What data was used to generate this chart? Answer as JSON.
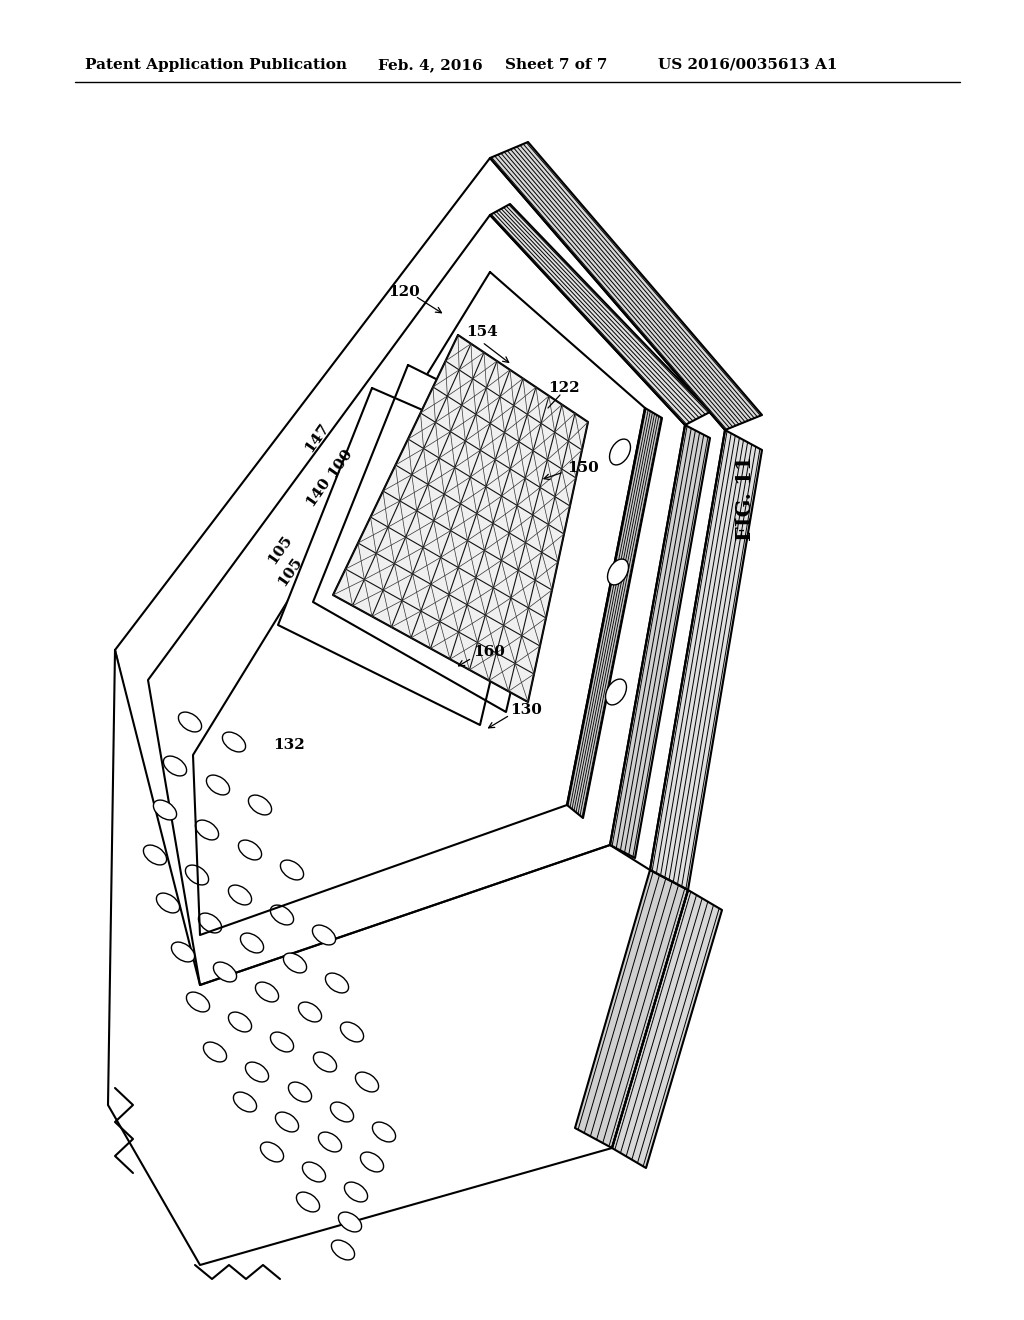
{
  "bg_color": "#ffffff",
  "line_color": "#000000",
  "header_text": "Patent Application Publication",
  "header_date": "Feb. 4, 2016",
  "header_sheet": "Sheet 7 of 7",
  "header_patent": "US 2016/0035613 A1",
  "fig_label": "FIG. 11",
  "label_120": "120",
  "label_154": "154",
  "label_122": "122",
  "label_150": "150",
  "label_147": "147",
  "label_100": "100",
  "label_140": "140",
  "label_105": "105",
  "label_160": "160",
  "label_130": "130",
  "label_132": "132"
}
